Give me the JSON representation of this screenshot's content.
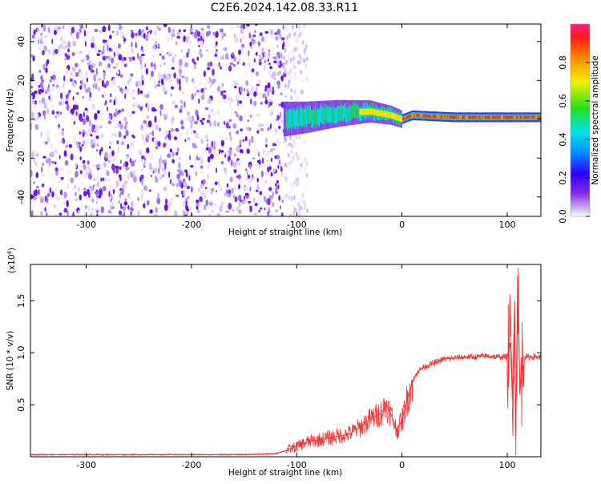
{
  "title": "C2E6.2024.142.08.33.R11",
  "chart_data": [
    {
      "type": "heatmap",
      "xlabel": "Height of straight line (km)",
      "ylabel": "Frequency (Hz)",
      "xlim": [
        -353,
        132
      ],
      "ylim": [
        -50,
        49
      ],
      "xticks": [
        -300,
        -200,
        -100,
        0,
        100
      ],
      "yticks": [
        -40,
        -20,
        0,
        20,
        40
      ],
      "xtick_labels": [
        "-300",
        "-200",
        "-100",
        "0",
        "100"
      ],
      "ytick_labels": [
        "-40",
        "-20",
        "0",
        "20",
        "40"
      ],
      "description_ridge": [
        {
          "x": -112,
          "y": 0
        },
        {
          "x": -90,
          "y": 1
        },
        {
          "x": -60,
          "y": 3
        },
        {
          "x": -30,
          "y": 4
        },
        {
          "x": -10,
          "y": 2
        },
        {
          "x": 0,
          "y": 0
        },
        {
          "x": 10,
          "y": 2
        },
        {
          "x": 50,
          "y": 1
        },
        {
          "x": 100,
          "y": 1
        },
        {
          "x": 132,
          "y": 1
        }
      ],
      "colorbar": {
        "label": "Normalized spectral amplitude",
        "range": [
          0.0,
          1.0
        ],
        "ticks": [
          0.0,
          0.2,
          0.4,
          0.6,
          0.8
        ],
        "tick_labels": [
          "0.0",
          "0.2",
          "0.4",
          "0.6",
          "0.8"
        ]
      },
      "grid": false
    },
    {
      "type": "line",
      "xlabel": "Height of straight line (km)",
      "ylabel": "SNR (10 * v/v)",
      "multiplier": "(x10",
      "multiplier_exp": "4",
      "multiplier_close": ")",
      "xlim": [
        -353,
        132
      ],
      "ylim": [
        0,
        1.85
      ],
      "xticks": [
        -300,
        -200,
        -100,
        0,
        100
      ],
      "yticks": [
        0.5,
        1.0,
        1.5
      ],
      "xtick_labels": [
        "-300",
        "-200",
        "-100",
        "0",
        "100"
      ],
      "ytick_labels": [
        "0.5",
        "1.0",
        "1.5"
      ],
      "series": [
        {
          "color": "#ee3333",
          "x": [
            -353,
            -300,
            -200,
            -150,
            -120,
            -110,
            -100,
            -90,
            -80,
            -70,
            -60,
            -50,
            -40,
            -30,
            -20,
            -15,
            -10,
            -5,
            0,
            5,
            10,
            15,
            20,
            30,
            40,
            50,
            60,
            70,
            80,
            90,
            100,
            103,
            105,
            107,
            108,
            110,
            112,
            115,
            120,
            125,
            132
          ],
          "y": [
            0.02,
            0.02,
            0.02,
            0.02,
            0.03,
            0.06,
            0.1,
            0.14,
            0.16,
            0.18,
            0.2,
            0.22,
            0.28,
            0.36,
            0.42,
            0.5,
            0.4,
            0.25,
            0.35,
            0.55,
            0.72,
            0.82,
            0.86,
            0.9,
            0.94,
            0.95,
            0.96,
            0.96,
            0.97,
            0.96,
            0.96,
            1.1,
            0.55,
            1.5,
            0.2,
            1.7,
            0.6,
            0.96,
            0.96,
            0.96,
            0.96
          ]
        }
      ],
      "grid": false
    }
  ]
}
